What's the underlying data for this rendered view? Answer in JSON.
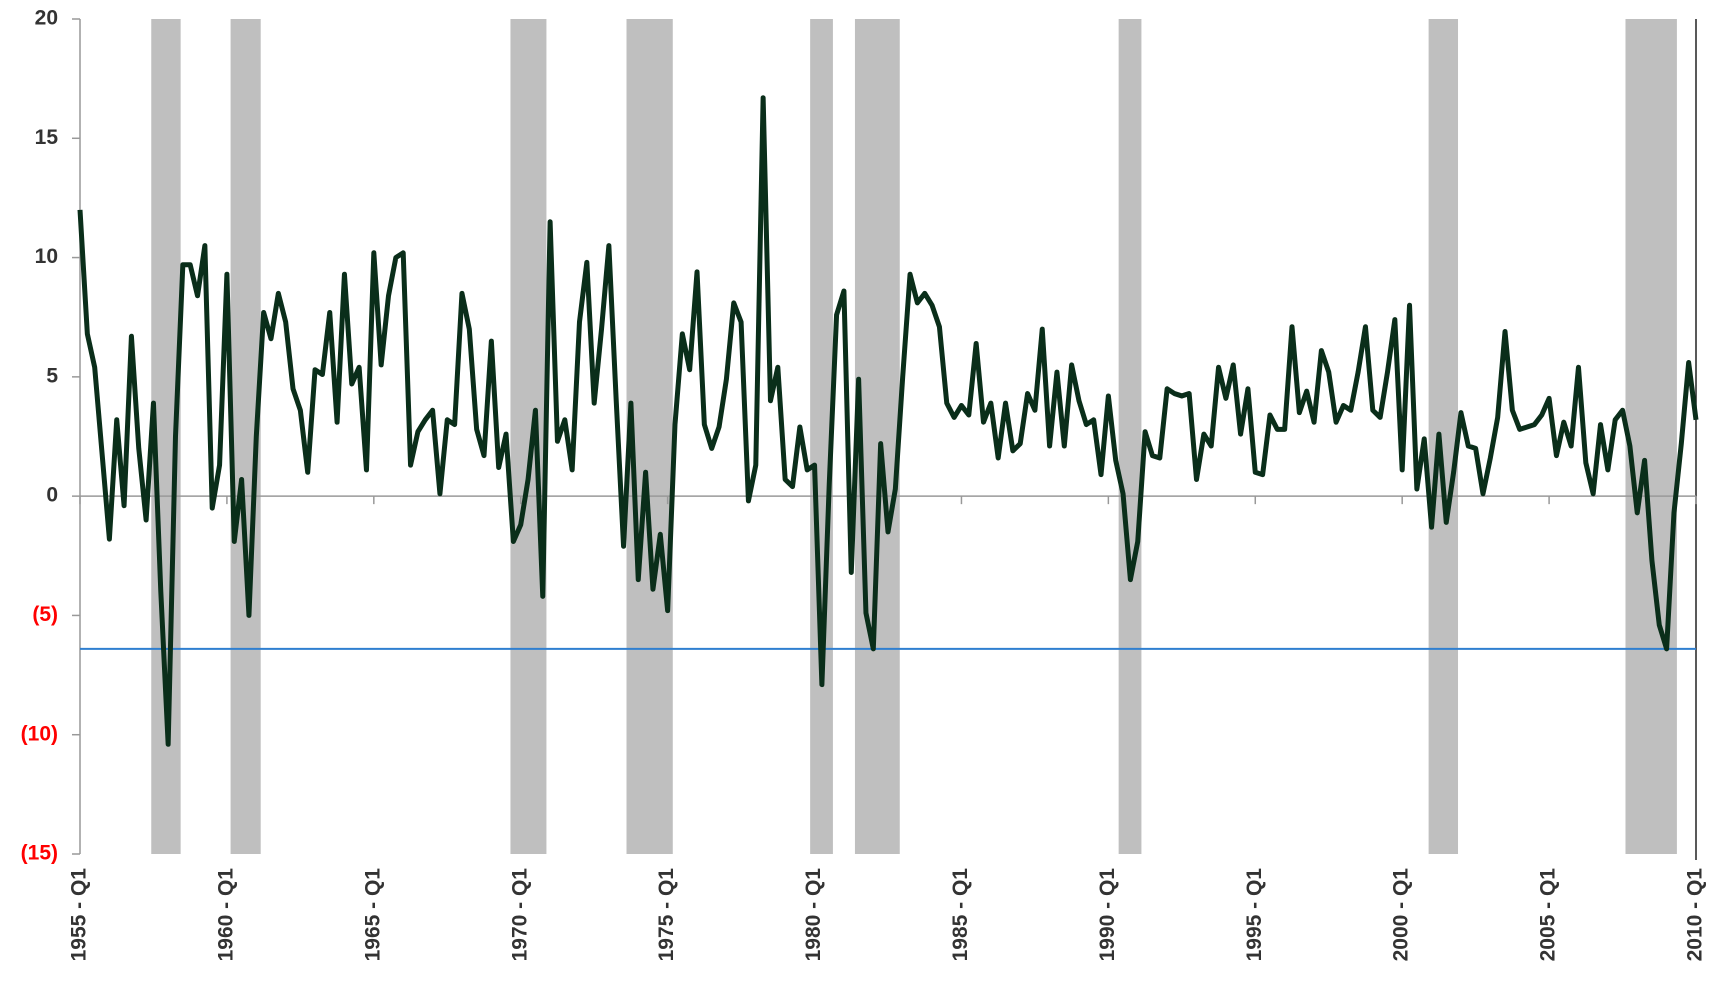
{
  "chart_data": {
    "type": "line",
    "categories": [
      "1955 - Q1",
      null,
      null,
      null,
      null,
      null,
      null,
      null,
      null,
      null,
      null,
      null,
      null,
      null,
      null,
      null,
      null,
      null,
      null,
      null,
      "1960 - Q1",
      null,
      null,
      null,
      null,
      null,
      null,
      null,
      null,
      null,
      null,
      null,
      null,
      null,
      null,
      null,
      null,
      null,
      null,
      null,
      "1965 - Q1",
      null,
      null,
      null,
      null,
      null,
      null,
      null,
      null,
      null,
      null,
      null,
      null,
      null,
      null,
      null,
      null,
      null,
      null,
      null,
      "1970 - Q1",
      null,
      null,
      null,
      null,
      null,
      null,
      null,
      null,
      null,
      null,
      null,
      null,
      null,
      null,
      null,
      null,
      null,
      null,
      null,
      "1975 - Q1",
      null,
      null,
      null,
      null,
      null,
      null,
      null,
      null,
      null,
      null,
      null,
      null,
      null,
      null,
      null,
      null,
      null,
      null,
      null,
      "1980 - Q1",
      null,
      null,
      null,
      null,
      null,
      null,
      null,
      null,
      null,
      null,
      null,
      null,
      null,
      null,
      null,
      null,
      null,
      null,
      null,
      "1985 - Q1",
      null,
      null,
      null,
      null,
      null,
      null,
      null,
      null,
      null,
      null,
      null,
      null,
      null,
      null,
      null,
      null,
      null,
      null,
      null,
      "1990 - Q1",
      null,
      null,
      null,
      null,
      null,
      null,
      null,
      null,
      null,
      null,
      null,
      null,
      null,
      null,
      null,
      null,
      null,
      null,
      null,
      "1995 - Q1",
      null,
      null,
      null,
      null,
      null,
      null,
      null,
      null,
      null,
      null,
      null,
      null,
      null,
      null,
      null,
      null,
      null,
      null,
      null,
      "2000 - Q1",
      null,
      null,
      null,
      null,
      null,
      null,
      null,
      null,
      null,
      null,
      null,
      null,
      null,
      null,
      null,
      null,
      null,
      null,
      null,
      "2005 - Q1",
      null,
      null,
      null,
      null,
      null,
      null,
      null,
      null,
      null,
      null,
      null,
      null,
      null,
      null,
      null,
      null,
      null,
      null,
      null,
      "2010 - Q1"
    ],
    "values": [
      12,
      6.8,
      5.4,
      1.8,
      -1.8,
      3.2,
      -0.4,
      6.7,
      2.0,
      -1.0,
      3.9,
      -4.0,
      -10.4,
      2.5,
      9.7,
      9.7,
      8.4,
      10.5,
      -0.5,
      1.3,
      9.3,
      -1.9,
      0.7,
      -5.0,
      2.5,
      7.7,
      6.6,
      8.5,
      7.3,
      4.5,
      3.6,
      1.0,
      5.3,
      5.1,
      7.7,
      3.1,
      9.3,
      4.7,
      5.4,
      1.1,
      10.2,
      5.5,
      8.4,
      10.0,
      10.2,
      1.3,
      2.7,
      3.2,
      3.6,
      0.1,
      3.2,
      3.0,
      8.5,
      7.0,
      2.8,
      1.7,
      6.5,
      1.2,
      2.6,
      -1.9,
      -1.2,
      0.7,
      3.6,
      -4.2,
      11.5,
      2.3,
      3.2,
      1.1,
      7.3,
      9.8,
      3.9,
      7.0,
      10.5,
      4.0,
      -2.1,
      3.9,
      -3.5,
      1.0,
      -3.9,
      -1.6,
      -4.8,
      3.0,
      6.8,
      5.3,
      9.4,
      3.0,
      2.0,
      2.9,
      4.9,
      8.1,
      7.3,
      -0.2,
      1.3,
      16.7,
      4.0,
      5.4,
      0.7,
      0.4,
      2.9,
      1.1,
      1.3,
      -7.9,
      0.5,
      7.6,
      8.6,
      -3.2,
      4.9,
      -4.9,
      -6.4,
      2.2,
      -1.5,
      0.3,
      5.0,
      9.3,
      8.1,
      8.5,
      8.0,
      7.1,
      3.9,
      3.3,
      3.8,
      3.4,
      6.4,
      3.1,
      3.9,
      1.6,
      3.9,
      1.9,
      2.2,
      4.3,
      3.6,
      7.0,
      2.1,
      5.2,
      2.1,
      5.5,
      4.0,
      3.0,
      3.2,
      0.9,
      4.2,
      1.5,
      0.1,
      -3.5,
      -1.9,
      2.7,
      1.7,
      1.6,
      4.5,
      4.3,
      4.2,
      4.3,
      0.7,
      2.6,
      2.1,
      5.4,
      4.1,
      5.5,
      2.6,
      4.5,
      1.0,
      0.9,
      3.4,
      2.8,
      2.8,
      7.1,
      3.5,
      4.4,
      3.1,
      6.1,
      5.2,
      3.1,
      3.8,
      3.6,
      5.2,
      7.1,
      3.6,
      3.3,
      5.2,
      7.4,
      1.1,
      8.0,
      0.3,
      2.4,
      -1.3,
      2.6,
      -1.1,
      1.0,
      3.5,
      2.1,
      2.0,
      0.1,
      1.6,
      3.3,
      6.9,
      3.6,
      2.8,
      2.9,
      3.0,
      3.4,
      4.1,
      1.7,
      3.1,
      2.1,
      5.4,
      1.4,
      0.1,
      3.0,
      1.1,
      3.2,
      3.6,
      2.1,
      -0.7,
      1.5,
      -2.7,
      -5.4,
      -6.4,
      -0.7,
      2.2,
      5.6,
      3.2
    ],
    "color": "#0a2e1a",
    "ylim": [
      -15,
      20
    ],
    "yticks": [
      20,
      15,
      10,
      5,
      0,
      {
        "value": -5,
        "label": "(5)"
      },
      {
        "value": -10,
        "label": "(10)"
      },
      {
        "value": -15,
        "label": "(15)"
      }
    ],
    "negative_tick_color": "#ff0000",
    "shaded_ranges": [
      [
        9.7,
        13.7
      ],
      [
        20.5,
        24.6
      ],
      [
        58.6,
        63.5
      ],
      [
        74.4,
        80.7
      ],
      [
        99.4,
        102.5
      ],
      [
        105.5,
        111.6
      ],
      [
        141.4,
        144.5
      ],
      [
        183.6,
        187.6
      ],
      [
        210.4,
        217.4
      ]
    ],
    "shade_color": "#bfbfbf",
    "reference_line": -6.4,
    "reference_color": "#2f7fd0"
  }
}
